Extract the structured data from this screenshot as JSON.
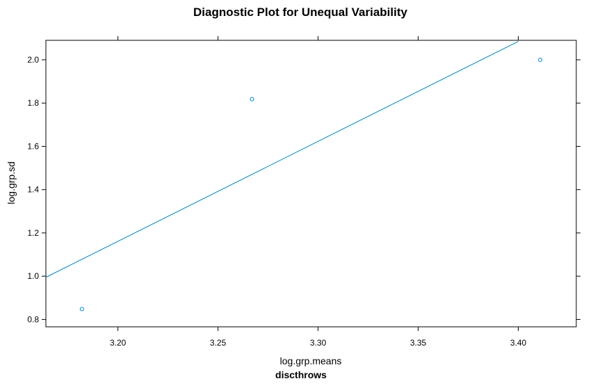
{
  "chart_data": {
    "type": "scatter",
    "title": "Diagnostic Plot for Unequal Variability",
    "xlabel": "log.grp.means",
    "ylabel": "log.grp.sd",
    "subtitle": "discthrows",
    "xlim": [
      3.164,
      3.429
    ],
    "ylim": [
      0.766,
      2.09
    ],
    "x_ticks": [
      3.2,
      3.25,
      3.3,
      3.35,
      3.4
    ],
    "x_tick_labels": [
      "3.20",
      "3.25",
      "3.30",
      "3.35",
      "3.40"
    ],
    "y_ticks": [
      0.8,
      1.0,
      1.2,
      1.4,
      1.6,
      1.8,
      2.0
    ],
    "y_tick_labels": [
      "0.8",
      "1.0",
      "1.2",
      "1.4",
      "1.6",
      "1.8",
      "2.0"
    ],
    "grid": false,
    "points": [
      {
        "x": 3.182,
        "y": 0.848
      },
      {
        "x": 3.267,
        "y": 1.818
      },
      {
        "x": 3.411,
        "y": 2.0
      }
    ],
    "fit_line": {
      "x": [
        3.164,
        3.4
      ],
      "y": [
        0.995,
        2.085
      ]
    },
    "colors": {
      "series": "#0080c0",
      "axis": "#000000",
      "background": "#ffffff"
    }
  }
}
